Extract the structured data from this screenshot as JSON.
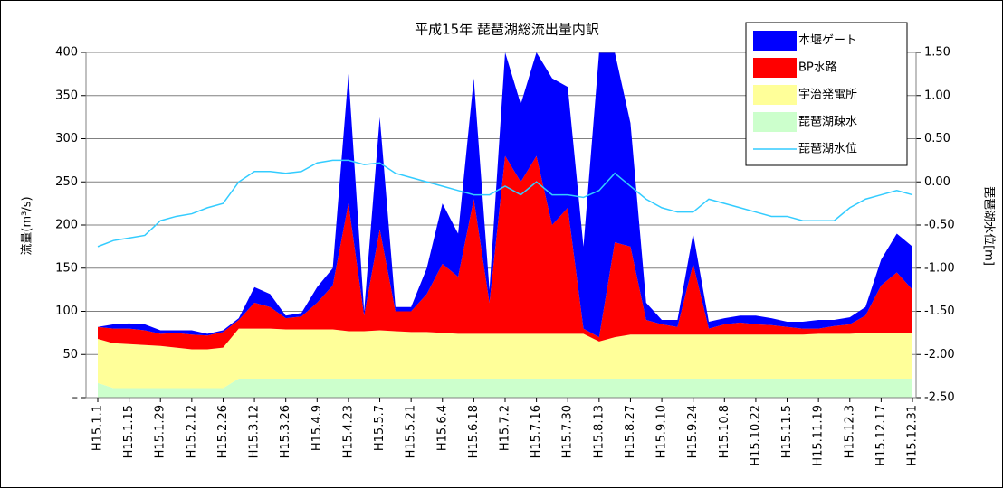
{
  "chart_data": {
    "type": "area",
    "stacked": true,
    "title": "平成15年 琵琶湖総流出量内訳",
    "y_label": "流量(m³/s)",
    "y2_label": "琵琶湖水位[m]",
    "categories": [
      "H15.1.1",
      null,
      "H15.1.15",
      null,
      "H15.1.29",
      null,
      "H15.2.12",
      null,
      "H15.2.26",
      null,
      "H15.3.12",
      null,
      "H15.3.26",
      null,
      "H15.4.9",
      null,
      "H15.4.23",
      null,
      "H15.5.7",
      null,
      "H15.5.21",
      null,
      "H15.6.4",
      null,
      "H15.6.18",
      null,
      "H15.7.2",
      null,
      "H15.7.16",
      null,
      "H15.7.30",
      null,
      "H15.8.13",
      null,
      "H15.8.27",
      null,
      "H15.9.10",
      null,
      "H15.9.24",
      null,
      "H15.10.8",
      null,
      "H15.10.22",
      null,
      "H15.11.5",
      null,
      "H15.11.19",
      null,
      "H15.12.3",
      null,
      "H15.12.17",
      null,
      "H15.12.31"
    ],
    "series": [
      {
        "name": "琵琶湖疎水",
        "color": "#ccffcc",
        "values": [
          17,
          11,
          11,
          11,
          11,
          11,
          11,
          11,
          11,
          22,
          22,
          22,
          22,
          22,
          22,
          22,
          22,
          22,
          22,
          22,
          22,
          22,
          22,
          22,
          22,
          22,
          22,
          22,
          22,
          22,
          22,
          22,
          22,
          22,
          22,
          22,
          22,
          22,
          22,
          22,
          22,
          22,
          22,
          22,
          22,
          22,
          22,
          22,
          22,
          22,
          22,
          22,
          22
        ]
      },
      {
        "name": "宇治発電所",
        "color": "#ffff99",
        "values": [
          51,
          52,
          51,
          50,
          49,
          47,
          45,
          45,
          47,
          58,
          58,
          58,
          57,
          57,
          57,
          57,
          55,
          55,
          56,
          55,
          54,
          54,
          53,
          52,
          52,
          52,
          52,
          52,
          52,
          52,
          52,
          52,
          43,
          48,
          51,
          51,
          51,
          51,
          51,
          51,
          51,
          51,
          51,
          51,
          51,
          51,
          52,
          52,
          52,
          53,
          53,
          53,
          53
        ]
      },
      {
        "name": "BP水路",
        "color": "#ff0000",
        "values": [
          14,
          17,
          18,
          17,
          14,
          17,
          17,
          16,
          18,
          10,
          30,
          25,
          13,
          15,
          31,
          51,
          148,
          18,
          117,
          23,
          24,
          44,
          80,
          66,
          156,
          36,
          206,
          176,
          206,
          126,
          146,
          6,
          5,
          110,
          102,
          17,
          12,
          9,
          82,
          7,
          12,
          14,
          12,
          11,
          9,
          7,
          6,
          9,
          11,
          20,
          55,
          70,
          50
        ]
      },
      {
        "name": "本堰ゲート",
        "color": "#0000ff",
        "values": [
          0,
          5,
          6,
          7,
          4,
          3,
          5,
          2,
          2,
          2,
          18,
          15,
          3,
          4,
          18,
          20,
          150,
          5,
          130,
          5,
          5,
          30,
          70,
          50,
          140,
          15,
          120,
          90,
          120,
          170,
          140,
          95,
          330,
          220,
          143,
          20,
          5,
          8,
          35,
          8,
          7,
          8,
          10,
          8,
          6,
          8,
          10,
          7,
          8,
          10,
          30,
          45,
          50
        ]
      },
      {
        "name": "琵琶湖水位",
        "type": "line",
        "axis": "y2",
        "color": "#33ccff",
        "values": [
          -0.75,
          -0.68,
          -0.65,
          -0.62,
          -0.45,
          -0.4,
          -0.37,
          -0.3,
          -0.25,
          0.0,
          0.12,
          0.12,
          0.1,
          0.12,
          0.22,
          0.25,
          0.25,
          0.2,
          0.22,
          0.1,
          0.05,
          0.0,
          -0.05,
          -0.1,
          -0.15,
          -0.15,
          -0.05,
          -0.15,
          0.0,
          -0.15,
          -0.15,
          -0.18,
          -0.1,
          0.1,
          -0.05,
          -0.2,
          -0.3,
          -0.35,
          -0.35,
          -0.2,
          -0.25,
          -0.3,
          -0.35,
          -0.4,
          -0.4,
          -0.45,
          -0.45,
          -0.45,
          -0.3,
          -0.2,
          -0.15,
          -0.1,
          -0.15
        ]
      }
    ],
    "legend_order": [
      3,
      2,
      1,
      0,
      4
    ],
    "ylim": [
      0,
      400
    ],
    "yticks": [
      {
        "value": 0,
        "label": "–"
      },
      50,
      100,
      150,
      200,
      250,
      300,
      350,
      400
    ],
    "y2lim": [
      -2.5,
      1.5
    ],
    "y2ticks": [
      {
        "value": -2.5,
        "label": "-2.50"
      },
      {
        "value": -2,
        "label": "-2.00"
      },
      {
        "value": -1.5,
        "label": "-1.50"
      },
      {
        "value": -1,
        "label": "-1.00"
      },
      {
        "value": -0.5,
        "label": "-0.50"
      },
      {
        "value": 0,
        "label": "0.00"
      },
      {
        "value": 0.5,
        "label": "0.50"
      },
      {
        "value": 1,
        "label": "1.00"
      },
      {
        "value": 1.5,
        "label": "1.50"
      }
    ],
    "grid": true
  }
}
